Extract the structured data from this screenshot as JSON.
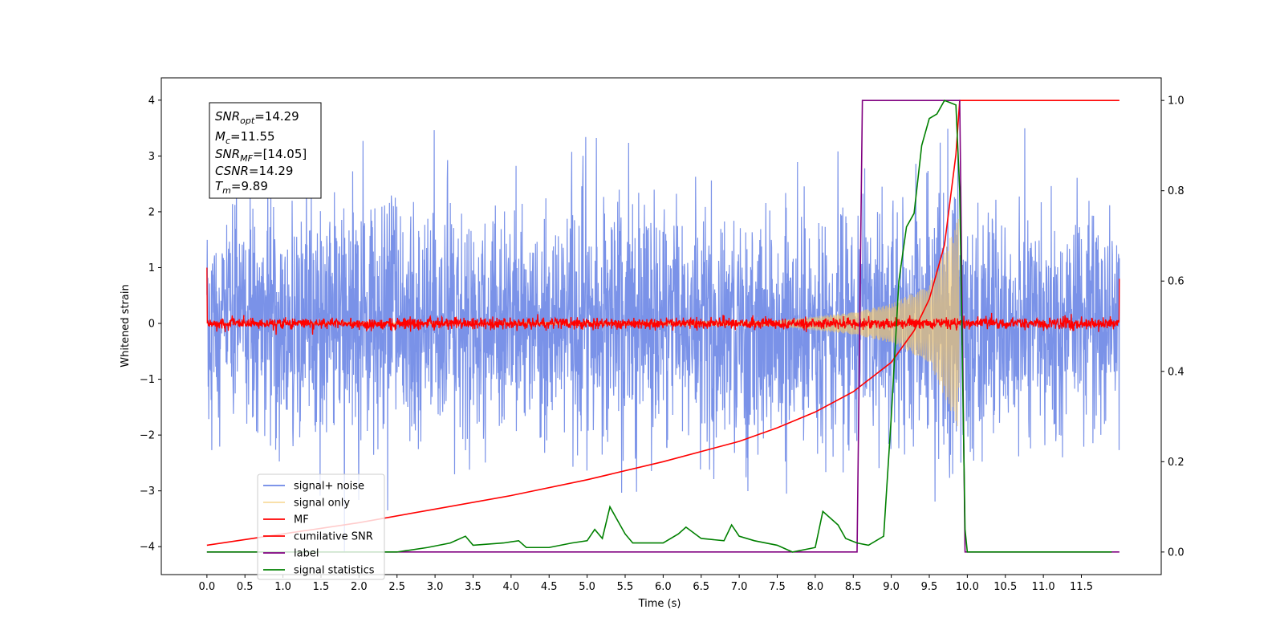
{
  "chart_data": {
    "type": "line",
    "xlabel": "Time (s)",
    "ylabel": "Whitened strain",
    "x_ticks": [
      "0.0",
      "0.5",
      "1.0",
      "1.5",
      "2.0",
      "2.5",
      "3.0",
      "3.5",
      "4.0",
      "4.5",
      "5.0",
      "5.5",
      "6.0",
      "6.5",
      "7.0",
      "7.5",
      "8.0",
      "8.5",
      "9.0",
      "9.5",
      "10.0",
      "10.5",
      "11.0",
      "11.5"
    ],
    "xlim": [
      -0.6,
      12.55
    ],
    "ylim_left": [
      -4.5,
      4.4
    ],
    "ylim_right": [
      -0.05,
      1.05
    ],
    "y_ticks_left": [
      "−4",
      "−3",
      "−2",
      "−1",
      "0",
      "1",
      "2",
      "3",
      "4"
    ],
    "y_ticks_right": [
      "0.0",
      "0.2",
      "0.4",
      "0.6",
      "0.8",
      "1.0"
    ],
    "annotation": {
      "snr_opt": {
        "sym": "SNR",
        "sub": "opt",
        "value": "=14.29"
      },
      "mc": {
        "sym": "M",
        "sub": "c",
        "value": "=11.55"
      },
      "snr_mf": {
        "sym": "SNR",
        "sub": "MF",
        "value": "=[14.05]"
      },
      "csnr": {
        "sym": "CSNR",
        "value": "=14.29"
      },
      "tm": {
        "sym": "T",
        "sub": "m",
        "value": "=9.89"
      }
    },
    "series": [
      {
        "name": "signal+ noise",
        "color": "#6b86e6",
        "axis": "left",
        "kind": "noise",
        "x_range": [
          0.0,
          12.0
        ],
        "sigma": 1.0,
        "spike_range": [
          -4.1,
          3.8
        ]
      },
      {
        "name": "signal only",
        "color": "#f5c86a",
        "axis": "left",
        "kind": "chirp",
        "t_merger": 9.89,
        "envelope": [
          [
            0.0,
            0.0
          ],
          [
            7.5,
            0.05
          ],
          [
            8.5,
            0.2
          ],
          [
            9.0,
            0.35
          ],
          [
            9.5,
            0.7
          ],
          [
            9.89,
            1.9
          ]
        ]
      },
      {
        "name": "MF",
        "color": "#ff0000",
        "axis": "left",
        "kind": "mf",
        "sigma": 0.05,
        "edge_values": [
          1.0,
          0.8
        ]
      },
      {
        "name": "cumilative SNR",
        "color": "#ff0000",
        "axis": "right",
        "points": [
          [
            0.0,
            0.015
          ],
          [
            1.0,
            0.04
          ],
          [
            2.0,
            0.065
          ],
          [
            3.0,
            0.095
          ],
          [
            4.0,
            0.125
          ],
          [
            5.0,
            0.16
          ],
          [
            6.0,
            0.2
          ],
          [
            7.0,
            0.245
          ],
          [
            7.5,
            0.275
          ],
          [
            8.0,
            0.31
          ],
          [
            8.5,
            0.355
          ],
          [
            9.0,
            0.42
          ],
          [
            9.3,
            0.49
          ],
          [
            9.5,
            0.56
          ],
          [
            9.7,
            0.68
          ],
          [
            9.85,
            0.88
          ],
          [
            9.9,
            1.0
          ],
          [
            12.0,
            1.0
          ]
        ]
      },
      {
        "name": "label",
        "color": "#800080",
        "axis": "right",
        "points": [
          [
            0.0,
            0.0
          ],
          [
            8.55,
            0.0
          ],
          [
            8.62,
            1.0
          ],
          [
            9.9,
            1.0
          ],
          [
            9.97,
            0.0
          ],
          [
            12.0,
            0.0
          ]
        ]
      },
      {
        "name": "signal statistics",
        "color": "#008000",
        "axis": "right",
        "points": [
          [
            0.0,
            0.0
          ],
          [
            2.5,
            0.0
          ],
          [
            2.9,
            0.01
          ],
          [
            3.2,
            0.02
          ],
          [
            3.4,
            0.035
          ],
          [
            3.5,
            0.015
          ],
          [
            3.9,
            0.02
          ],
          [
            4.1,
            0.025
          ],
          [
            4.2,
            0.01
          ],
          [
            4.5,
            0.01
          ],
          [
            4.8,
            0.02
          ],
          [
            5.0,
            0.025
          ],
          [
            5.1,
            0.05
          ],
          [
            5.2,
            0.03
          ],
          [
            5.3,
            0.1
          ],
          [
            5.4,
            0.07
          ],
          [
            5.5,
            0.04
          ],
          [
            5.6,
            0.02
          ],
          [
            6.0,
            0.02
          ],
          [
            6.2,
            0.04
          ],
          [
            6.3,
            0.055
          ],
          [
            6.5,
            0.03
          ],
          [
            6.8,
            0.025
          ],
          [
            6.9,
            0.06
          ],
          [
            7.0,
            0.035
          ],
          [
            7.2,
            0.025
          ],
          [
            7.5,
            0.015
          ],
          [
            7.7,
            0.0
          ],
          [
            8.0,
            0.01
          ],
          [
            8.1,
            0.09
          ],
          [
            8.3,
            0.06
          ],
          [
            8.4,
            0.03
          ],
          [
            8.55,
            0.02
          ],
          [
            8.7,
            0.015
          ],
          [
            8.9,
            0.035
          ],
          [
            9.0,
            0.3
          ],
          [
            9.1,
            0.6
          ],
          [
            9.2,
            0.72
          ],
          [
            9.3,
            0.75
          ],
          [
            9.4,
            0.9
          ],
          [
            9.5,
            0.96
          ],
          [
            9.6,
            0.97
          ],
          [
            9.7,
            1.0
          ],
          [
            9.85,
            0.99
          ],
          [
            9.9,
            0.8
          ],
          [
            9.97,
            0.05
          ],
          [
            10.0,
            0.0
          ],
          [
            11.9,
            0.0
          ]
        ]
      }
    ],
    "legend": {
      "location": "lower-left",
      "entries": [
        "signal+ noise",
        "signal only",
        "MF",
        "cumilative SNR",
        "label",
        "signal statistics"
      ]
    }
  }
}
